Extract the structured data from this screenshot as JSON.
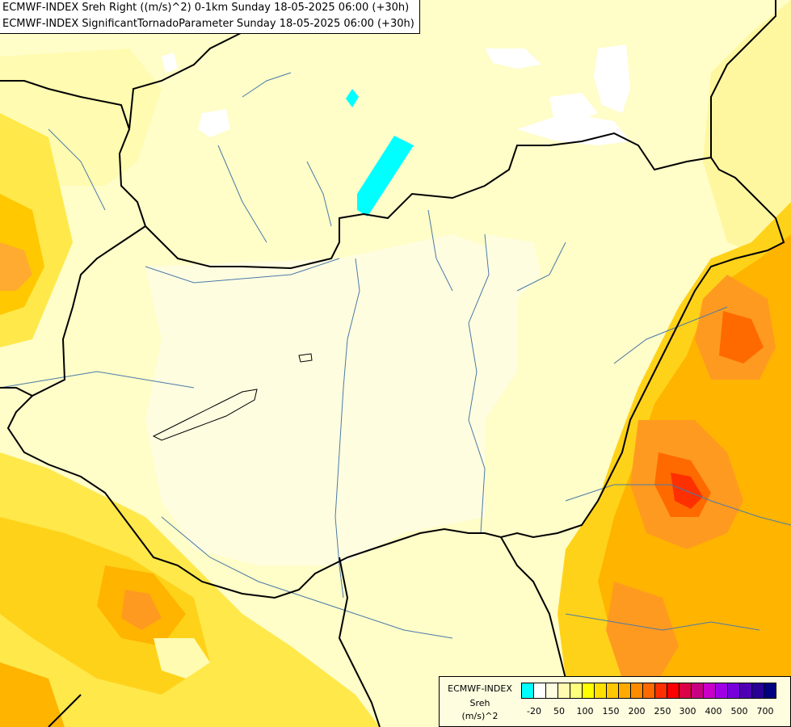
{
  "header": {
    "line1": "ECMWF-INDEX Sreh Right ((m/s)^2) 0-1km Sunday 18-05-2025 06:00 (+30h)",
    "line2": "ECMWF-INDEX SignificantTornadoParameter Sunday 18-05-2025 06:00 (+30h)"
  },
  "legend": {
    "title_lines": [
      "ECMWF-INDEX",
      "Sreh",
      "(m/s)^2"
    ],
    "colors": [
      "#00ffff",
      "#ffffff",
      "#fffde0",
      "#fffbb0",
      "#ffff80",
      "#ffff00",
      "#ffe000",
      "#ffc800",
      "#ffaa00",
      "#ff8c00",
      "#ff6a00",
      "#ff3000",
      "#ff0000",
      "#dc0046",
      "#c80082",
      "#c800c8",
      "#a000e6",
      "#7800dc",
      "#5000b4",
      "#280096",
      "#000080"
    ],
    "ticks": [
      "-20",
      "50",
      "100",
      "150",
      "200",
      "250",
      "300",
      "400",
      "500",
      "700"
    ]
  },
  "colors": {
    "background": "#fffdc8",
    "border_line": "#000000",
    "river_line": "#4a7aa8"
  }
}
